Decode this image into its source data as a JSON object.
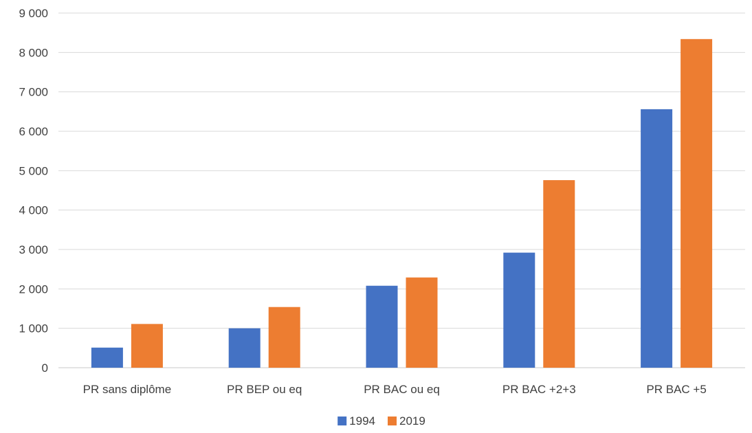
{
  "chart_data": {
    "type": "bar",
    "title": "",
    "xlabel": "",
    "ylabel": "",
    "categories": [
      "PR sans diplôme",
      "PR BEP ou eq",
      "PR BAC ou eq",
      "PR BAC +2+3",
      "PR BAC +5"
    ],
    "series": [
      {
        "name": "1994",
        "color": "#4472C4",
        "values": [
          510,
          1000,
          2080,
          2920,
          6560
        ]
      },
      {
        "name": "2019",
        "color": "#ED7D31",
        "values": [
          1110,
          1540,
          2290,
          4760,
          8340
        ]
      }
    ],
    "ylim": [
      0,
      9000
    ],
    "yticks": [
      0,
      1000,
      2000,
      3000,
      4000,
      5000,
      6000,
      7000,
      8000,
      9000
    ],
    "ytick_labels": [
      "0",
      "1 000",
      "2 000",
      "3 000",
      "4 000",
      "5 000",
      "6 000",
      "7 000",
      "8 000",
      "9 000"
    ],
    "grid": true,
    "legend_position": "bottom"
  }
}
